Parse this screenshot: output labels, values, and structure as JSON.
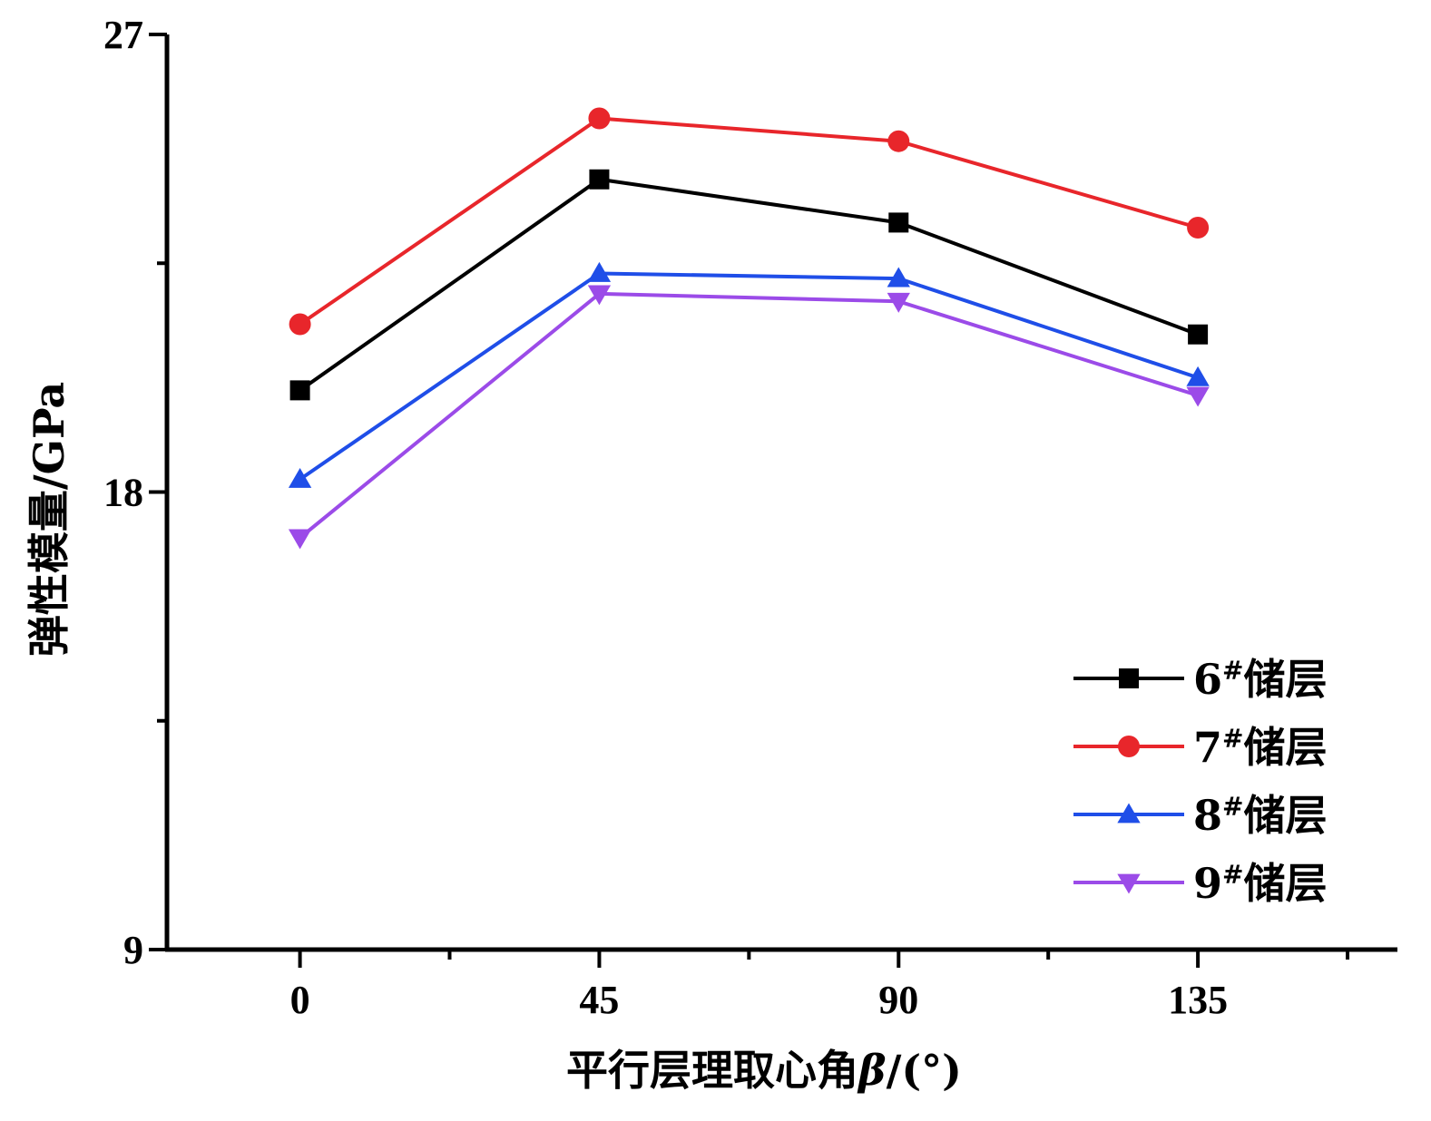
{
  "chart_data": {
    "type": "line",
    "x": [
      0,
      45,
      90,
      135
    ],
    "x_tick_labels": [
      "0",
      "45",
      "90",
      "135"
    ],
    "x_minor_ticks": [
      22.5,
      67.5,
      112.5,
      157.5
    ],
    "xlim": [
      -20,
      165
    ],
    "y_tick_labels": [
      "9",
      "18",
      "27"
    ],
    "y_ticks": [
      9,
      18,
      27
    ],
    "y_minor_ticks": [
      13.5,
      22.5
    ],
    "ylim": [
      9,
      27
    ],
    "xlabel": "平行层理取心角",
    "xlabel_symbol": "β",
    "xlabel_unit": "/(°)",
    "ylabel": "弹性模量/GPa",
    "legend_position": "bottom-right",
    "grid": false,
    "series": [
      {
        "name": "6#储层",
        "number": "6",
        "sup": "#",
        "suffix": "储层",
        "marker": "square",
        "color": "#000000",
        "values": [
          20.0,
          24.15,
          23.3,
          21.1
        ]
      },
      {
        "name": "7#储层",
        "number": "7",
        "sup": "#",
        "suffix": "储层",
        "marker": "circle",
        "color": "#e8262b",
        "values": [
          21.3,
          25.35,
          24.9,
          23.2
        ]
      },
      {
        "name": "8#储层",
        "number": "8",
        "sup": "#",
        "suffix": "储层",
        "marker": "triangle-up",
        "color": "#1f4ee8",
        "values": [
          18.25,
          22.3,
          22.2,
          20.25
        ]
      },
      {
        "name": "9#储层",
        "number": "9",
        "sup": "#",
        "suffix": "储层",
        "marker": "triangle-down",
        "color": "#9b4be8",
        "values": [
          17.1,
          21.9,
          21.75,
          19.9
        ]
      }
    ]
  }
}
